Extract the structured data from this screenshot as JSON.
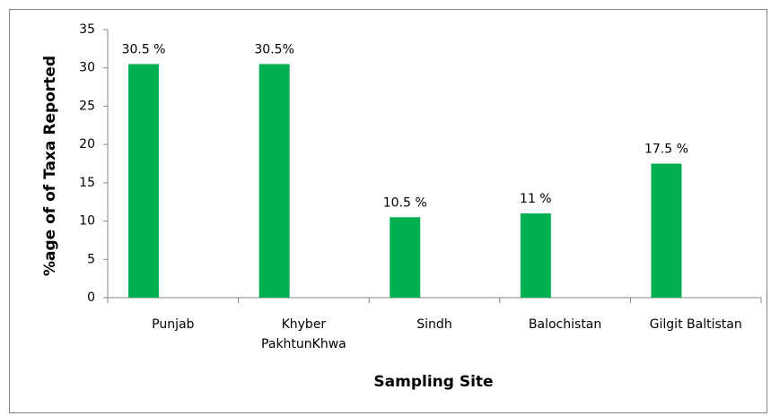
{
  "chart_data": {
    "type": "bar",
    "x_label": "Sampling Site",
    "y_label": "%age of  of Taxa Reported",
    "categories": [
      "Punjab",
      "Khyber\nPakhtunKhwa",
      "Sindh",
      "Balochistan",
      "Gilgit Baltistan"
    ],
    "values": [
      30.5,
      30.5,
      10.5,
      11,
      17.5
    ],
    "value_labels": [
      "30.5 %",
      "30.5%",
      "10.5 %",
      "11 %",
      "17.5 %"
    ],
    "color": "#00b050",
    "ylim": [
      0,
      35
    ],
    "yticks": [
      0,
      5,
      10,
      15,
      20,
      25,
      30,
      35
    ],
    "grid": false
  }
}
